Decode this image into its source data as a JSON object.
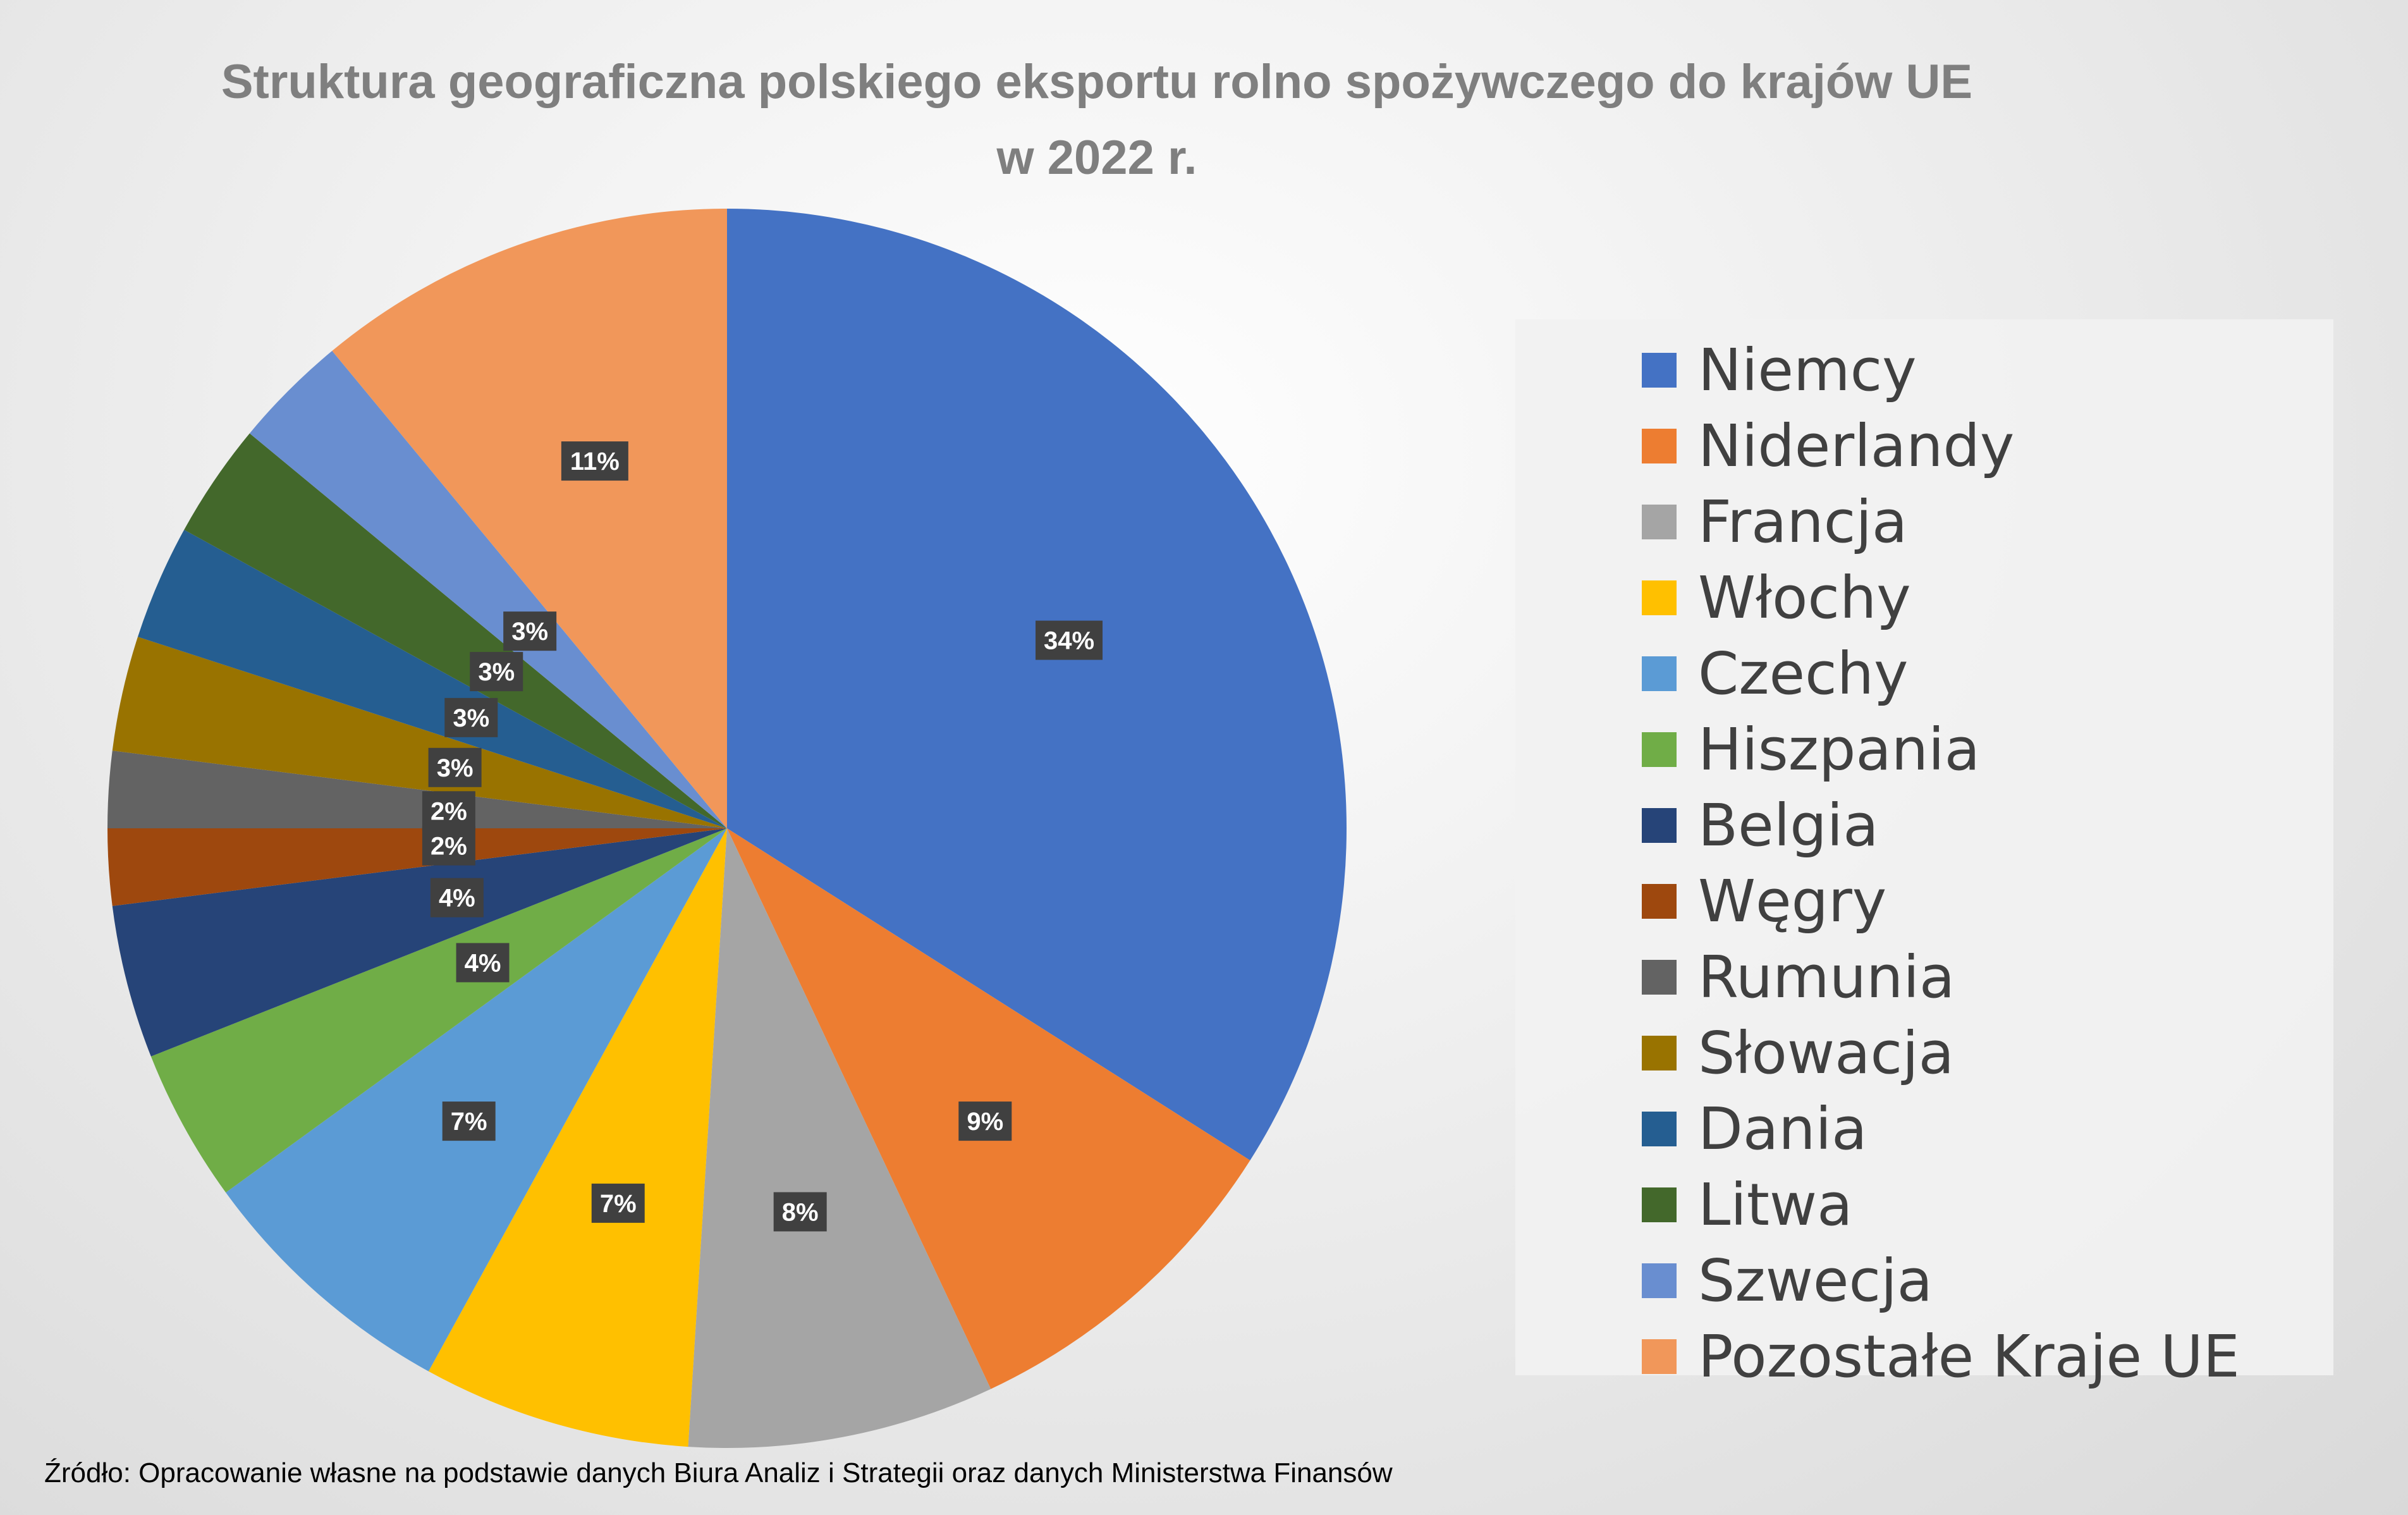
{
  "chart_data": {
    "type": "pie",
    "title_line1": "Struktura geograficzna polskiego eksportu rolno spożywczego do krajów UE",
    "title_line2": "w 2022 r.",
    "legend_position": "right",
    "slices": [
      {
        "name": "Niemcy",
        "value": 34,
        "label": "34%",
        "color": "#4472C4"
      },
      {
        "name": "Niderlandy",
        "value": 9,
        "label": "9%",
        "color": "#ED7D31"
      },
      {
        "name": "Francja",
        "value": 8,
        "label": "8%",
        "color": "#A5A5A5"
      },
      {
        "name": "Włochy",
        "value": 7,
        "label": "7%",
        "color": "#FFC000"
      },
      {
        "name": "Czechy",
        "value": 7,
        "label": "7%",
        "color": "#5B9BD5"
      },
      {
        "name": "Hiszpania",
        "value": 4,
        "label": "4%",
        "color": "#70AD47"
      },
      {
        "name": "Belgia",
        "value": 4,
        "label": "4%",
        "color": "#264478"
      },
      {
        "name": "Węgry",
        "value": 2,
        "label": "2%",
        "color": "#9E480E"
      },
      {
        "name": "Rumunia",
        "value": 2,
        "label": "2%",
        "color": "#636363"
      },
      {
        "name": "Słowacja",
        "value": 3,
        "label": "3%",
        "color": "#997300"
      },
      {
        "name": "Dania",
        "value": 3,
        "label": "3%",
        "color": "#255E91"
      },
      {
        "name": "Litwa",
        "value": 3,
        "label": "3%",
        "color": "#43682B"
      },
      {
        "name": "Szwecja",
        "value": 3,
        "label": "3%",
        "color": "#698ED0"
      },
      {
        "name": "Pozostałe Kraje UE",
        "value": 11,
        "label": "11%",
        "color": "#F1975A"
      }
    ]
  },
  "source_note": "Źródło: Opracowanie własne na podstawie danych Biura Analiz i Strategii oraz danych Ministerstwa Finansów"
}
